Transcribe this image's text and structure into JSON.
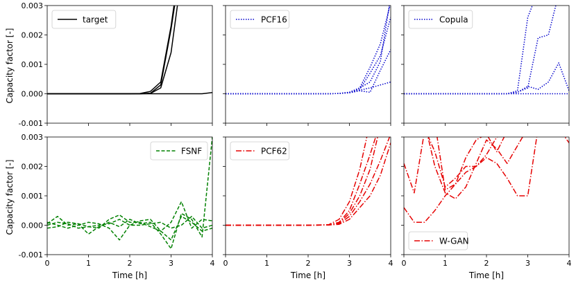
{
  "chart_data": {
    "type": "line",
    "layout": "2x3 grid, shared axes",
    "x_range": [
      0,
      4
    ],
    "y_range": [
      -0.001,
      0.003
    ],
    "x_ticks": [
      "0",
      "1",
      "2",
      "3",
      "4"
    ],
    "y_ticks": [
      "-0.001",
      "0.000",
      "0.001",
      "0.002",
      "0.003"
    ],
    "xlabel": "Time [h]",
    "ylabel": "Capacity factor [-]",
    "grid": false,
    "panels": [
      {
        "legend": "target",
        "legend_position": "top-left",
        "color": "#000000",
        "style": "solid",
        "series": [
          {
            "x": [
              0,
              0.25,
              0.5,
              0.75,
              1,
              1.25,
              1.5,
              1.75,
              2,
              2.25,
              2.5,
              2.75,
              3,
              3.25
            ],
            "y": [
              0,
              0,
              0,
              0,
              0,
              0,
              0,
              0,
              0,
              0,
              2e-05,
              0.0003,
              0.0022,
              0.0045
            ]
          },
          {
            "x": [
              0,
              0.25,
              0.5,
              0.75,
              1,
              1.25,
              1.5,
              1.75,
              2,
              2.25,
              2.5,
              2.75,
              3,
              3.25
            ],
            "y": [
              0,
              0,
              0,
              0,
              0,
              0,
              0,
              0,
              0,
              0,
              1e-05,
              0.0002,
              0.0014,
              0.004
            ]
          },
          {
            "x": [
              0,
              0.25,
              0.5,
              0.75,
              1,
              1.25,
              1.5,
              1.75,
              2,
              2.25,
              2.5,
              2.75,
              3,
              3.25
            ],
            "y": [
              0,
              0,
              0,
              0,
              0,
              0,
              0,
              0,
              0,
              1e-05,
              8e-05,
              0.0004,
              0.0023,
              0.0048
            ]
          },
          {
            "x": [
              0,
              0.5,
              1,
              1.5,
              2,
              2.5,
              3,
              3.5,
              3.75,
              4
            ],
            "y": [
              0,
              0,
              0,
              0,
              0,
              0,
              0,
              0,
              0,
              4e-05
            ]
          }
        ]
      },
      {
        "legend": "PCF16",
        "legend_position": "top-left",
        "color": "#0000cc",
        "style": "dotted",
        "series": [
          {
            "x": [
              0,
              0.5,
              1,
              1.5,
              2,
              2.5,
              2.75,
              3,
              3.25,
              3.5,
              3.75,
              4
            ],
            "y": [
              0,
              0,
              0,
              0,
              0,
              0,
              1e-05,
              5e-05,
              0.0002,
              0.0009,
              0.0017,
              0.0031
            ]
          },
          {
            "x": [
              0,
              0.5,
              1,
              1.5,
              2,
              2.5,
              2.75,
              3,
              3.25,
              3.5,
              3.75,
              4
            ],
            "y": [
              0,
              0,
              0,
              0,
              0,
              0,
              1e-05,
              4e-05,
              0.00015,
              0.0007,
              0.0013,
              0.0026
            ]
          },
          {
            "x": [
              0,
              0.5,
              1,
              1.5,
              2,
              2.5,
              2.75,
              3,
              3.25,
              3.5,
              3.75,
              4
            ],
            "y": [
              0,
              0,
              0,
              0,
              0,
              0,
              1e-05,
              5e-05,
              0.0002,
              0.0004,
              0.0011,
              0.0033
            ]
          },
          {
            "x": [
              0,
              0.5,
              1,
              1.5,
              2,
              2.5,
              2.75,
              3,
              3.25,
              3.5,
              3.75,
              4
            ],
            "y": [
              0,
              0,
              0,
              0,
              0,
              0,
              1e-05,
              3e-05,
              0.0001,
              5e-05,
              0.0008,
              0.0015
            ]
          },
          {
            "x": [
              0,
              0.5,
              1,
              1.5,
              2,
              2.5,
              2.75,
              3,
              3.25,
              3.5,
              3.75,
              4
            ],
            "y": [
              0,
              0,
              0,
              0,
              0,
              0,
              1e-05,
              4e-05,
              0.00012,
              0.0002,
              0.0003,
              0.0004
            ]
          }
        ]
      },
      {
        "legend": "Copula",
        "legend_position": "top-left",
        "color": "#0000cc",
        "style": "dotted",
        "series": [
          {
            "x": [
              0,
              0.5,
              1,
              1.5,
              2,
              2.5,
              2.75,
              3,
              3.25
            ],
            "y": [
              0,
              0,
              0,
              0,
              0,
              0,
              0.0001,
              0.0026,
              0.0035
            ]
          },
          {
            "x": [
              0,
              0.5,
              1,
              1.5,
              2,
              2.5,
              2.75,
              3,
              3.25,
              3.5,
              3.75,
              4
            ],
            "y": [
              0,
              0,
              0,
              0,
              0,
              0,
              5e-05,
              0.00025,
              0.00015,
              0.0004,
              0.00105,
              0.0001
            ]
          },
          {
            "x": [
              0,
              0.5,
              1,
              1.5,
              2,
              2.5,
              2.75,
              3,
              3.25,
              3.5,
              3.75
            ],
            "y": [
              0,
              0,
              0,
              0,
              0,
              0,
              5e-05,
              0.0002,
              0.0019,
              0.002,
              0.0034
            ]
          },
          {
            "x": [
              0,
              0.5,
              1,
              1.5,
              2,
              2.5,
              3,
              3.5,
              4
            ],
            "y": [
              0,
              0,
              0,
              0,
              0,
              0,
              0,
              0,
              0
            ]
          }
        ]
      },
      {
        "legend": "FSNF",
        "legend_position": "top-right",
        "color": "#008000",
        "style": "dashed",
        "series": [
          {
            "x": [
              0,
              0.25,
              0.5,
              0.75,
              1,
              1.25,
              1.5,
              1.75,
              2,
              2.25,
              2.5,
              2.75,
              3,
              3.25,
              3.5,
              3.75,
              4
            ],
            "y": [
              5e-05,
              0.0003,
              0.0,
              5e-05,
              -5e-05,
              -0.0001,
              0.0002,
              0.00035,
              0.0001,
              0.0001,
              -5e-05,
              -0.0002,
              0.0001,
              0.0008,
              -0.0001,
              0.0002,
              0.00015
            ]
          },
          {
            "x": [
              0,
              0.25,
              0.5,
              0.75,
              1,
              1.25,
              1.5,
              1.75,
              2,
              2.25,
              2.5,
              2.75,
              3,
              3.25,
              3.5,
              3.75,
              4
            ],
            "y": [
              -0.0001,
              -5e-05,
              0.0001,
              5e-05,
              -0.0003,
              -5e-05,
              0.0001,
              -5e-05,
              0.0002,
              5e-05,
              0.0001,
              -0.0003,
              -0.0008,
              0.0004,
              0.0002,
              -0.0004,
              0.003
            ]
          },
          {
            "x": [
              0,
              0.25,
              0.5,
              0.75,
              1,
              1.25,
              1.5,
              1.75,
              2,
              2.25,
              2.5,
              2.75,
              3,
              3.25,
              3.5,
              3.75,
              4
            ],
            "y": [
              0.0001,
              0.0,
              -0.0001,
              0.0,
              0.0001,
              5e-05,
              -0.0001,
              -0.0005,
              0.0,
              0.00015,
              0.0002,
              -0.0002,
              -0.0005,
              0.0003,
              0.0001,
              -0.0002,
              -0.0001
            ]
          },
          {
            "x": [
              0,
              0.25,
              0.5,
              0.75,
              1,
              1.25,
              1.5,
              1.75,
              2,
              2.25,
              2.5,
              2.75,
              3,
              3.25,
              3.5,
              3.75,
              4
            ],
            "y": [
              0.0,
              0.0001,
              5e-05,
              -0.0001,
              -5e-05,
              0.0,
              5e-05,
              0.0002,
              0.0,
              0.0,
              5e-05,
              0.0001,
              -0.0001,
              0.0,
              0.0003,
              -0.0001,
              0.0
            ]
          }
        ]
      },
      {
        "legend": "PCF62",
        "legend_position": "top-left",
        "color": "#e60000",
        "style": "dashdot",
        "series": [
          {
            "x": [
              0,
              0.5,
              1,
              1.5,
              2,
              2.5,
              2.75,
              3,
              3.25,
              3.5
            ],
            "y": [
              0,
              0,
              0,
              0,
              0,
              2e-05,
              0.0002,
              0.0008,
              0.0019,
              0.0035
            ]
          },
          {
            "x": [
              0,
              0.5,
              1,
              1.5,
              2,
              2.5,
              2.75,
              3,
              3.25,
              3.5,
              3.75
            ],
            "y": [
              0,
              0,
              0,
              0,
              0,
              1e-05,
              0.0001,
              0.0005,
              0.0014,
              0.0024,
              0.0035
            ]
          },
          {
            "x": [
              0,
              0.5,
              1,
              1.5,
              2,
              2.5,
              2.75,
              3,
              3.25,
              3.5,
              3.75
            ],
            "y": [
              0,
              0,
              0,
              0,
              0,
              1e-05,
              8e-05,
              0.0004,
              0.001,
              0.0019,
              0.0034
            ]
          },
          {
            "x": [
              0,
              0.5,
              1,
              1.5,
              2,
              2.5,
              2.75,
              3,
              3.25,
              3.5,
              3.75,
              4
            ],
            "y": [
              0,
              0,
              0,
              0,
              0,
              1e-05,
              5e-05,
              0.0003,
              0.0008,
              0.0014,
              0.0022,
              0.0031
            ]
          },
          {
            "x": [
              0,
              0.5,
              1,
              1.5,
              2,
              2.5,
              2.75,
              3,
              3.25,
              3.5,
              3.75,
              4
            ],
            "y": [
              0,
              0,
              0,
              0,
              0,
              1e-05,
              3e-05,
              0.0002,
              0.0006,
              0.001,
              0.0017,
              0.0028
            ]
          }
        ]
      },
      {
        "legend": "W-GAN",
        "legend_position": "bottom-left",
        "color": "#e60000",
        "style": "dashdot",
        "series": [
          {
            "x": [
              0,
              0.25,
              0.5,
              0.75,
              1,
              1.25,
              1.5,
              1.75,
              2,
              2.25,
              2.5,
              2.75
            ],
            "y": [
              0.0021,
              0.0011,
              0.0032,
              0.0035,
              0.0012,
              0.0014,
              0.0023,
              0.0029,
              0.0031,
              0.0025,
              0.0032,
              0.0034
            ]
          },
          {
            "x": [
              0,
              0.25,
              0.5,
              0.75,
              1,
              1.25,
              1.5,
              1.75,
              2,
              2.25,
              2.5,
              2.75,
              3,
              3.25
            ],
            "y": [
              0.0006,
              0.0001,
              0.0001,
              0.0005,
              0.001,
              0.0014,
              0.0018,
              0.002,
              0.0023,
              0.0021,
              0.0016,
              0.001,
              0.001,
              0.0033
            ]
          },
          {
            "x": [
              0,
              0.25,
              0.5,
              0.75,
              1,
              1.25,
              1.5,
              1.75,
              2,
              2.25,
              2.5,
              2.75,
              3,
              3.25
            ],
            "y": [
              0.0033,
              0.0034,
              0.0035,
              0.002,
              0.0011,
              0.0009,
              0.0013,
              0.0021,
              0.0029,
              0.0026,
              0.0021,
              0.0027,
              0.0033,
              0.0035
            ]
          },
          {
            "x": [
              0,
              0.25,
              0.5,
              0.75,
              1,
              1.25,
              1.5,
              1.75,
              2,
              2.25,
              2.5,
              2.75,
              3,
              3.25,
              3.5,
              3.75,
              4
            ],
            "y": [
              0.0034,
              0.0035,
              0.0033,
              0.0025,
              0.0013,
              0.0016,
              0.002,
              0.002,
              0.0024,
              0.003,
              0.0031,
              0.0033,
              0.0035,
              0.0035,
              0.0034,
              0.0033,
              0.0028
            ]
          }
        ]
      }
    ]
  }
}
